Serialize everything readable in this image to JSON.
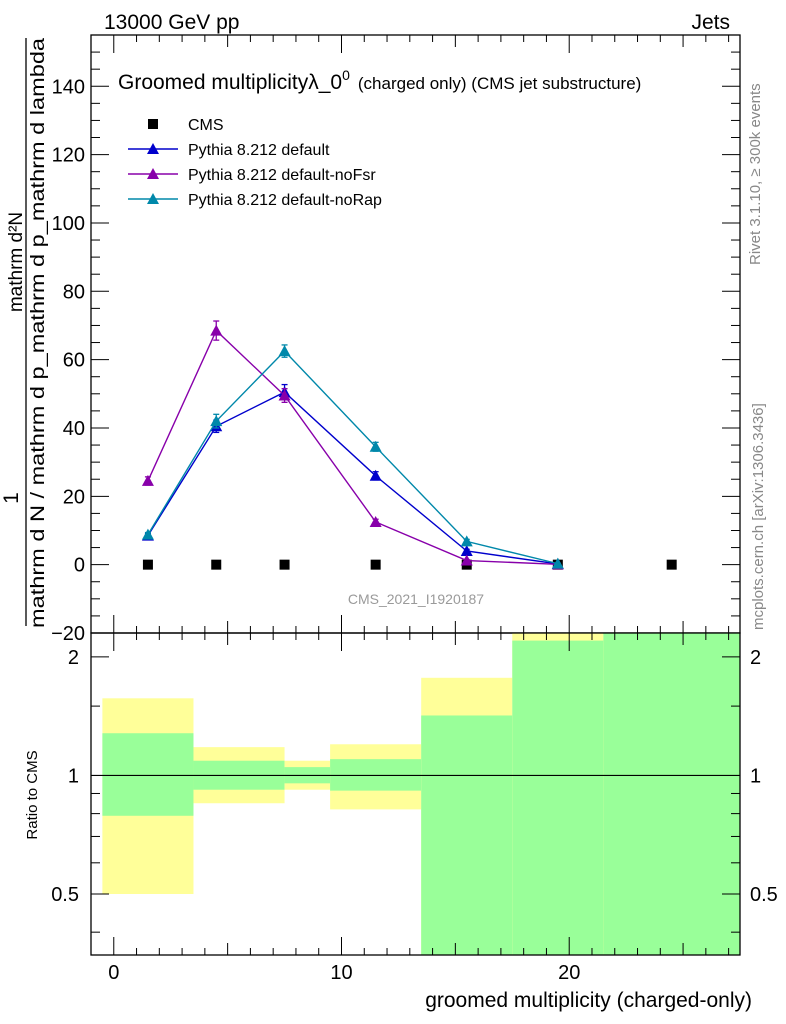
{
  "header": {
    "left": "13000 GeV pp",
    "right": "Jets"
  },
  "side": {
    "rivet": "Rivet 3.1.10, ≥ 300k events",
    "mcplots": "mcplots.cern.ch [arXiv:1306.3436]"
  },
  "chart_data": [
    {
      "type": "line",
      "title_main": "Groomed multiplicity",
      "title_lambda": "λ_0",
      "title_sup": "0",
      "title_suffix": "(charged only) (CMS jet substructure)",
      "watermark": "CMS_2021_I1920187",
      "ylabel_numer": "1",
      "ylabel_denom": "mathrm d N / mathrm d p_mathrm d p_mathrm d lambda",
      "ylabel_inner": "mathrm d²N",
      "ylim": [
        -20,
        155
      ],
      "xlim": [
        -1,
        27.5
      ],
      "y_ticks": [
        -20,
        0,
        20,
        40,
        60,
        80,
        100,
        120,
        140
      ],
      "y_tick_labels": [
        "−20",
        "0",
        "20",
        "40",
        "60",
        "80",
        "100",
        "120",
        "140"
      ],
      "legend_position": "top-left",
      "series": [
        {
          "name": "CMS",
          "color": "#000000",
          "marker": "square",
          "x": [
            1.5,
            4.5,
            7.5,
            11.5,
            15.5,
            19.5,
            24.5
          ],
          "values": [
            0,
            0,
            0,
            0,
            0,
            0,
            0
          ],
          "errors": [
            0,
            0,
            0,
            0,
            0,
            0,
            0
          ]
        },
        {
          "name": "Pythia 8.212 default",
          "color": "#0000cc",
          "marker": "triangle",
          "x": [
            1.5,
            4.5,
            7.5,
            11.5,
            15.5,
            19.5
          ],
          "values": [
            8.5,
            40.5,
            50.5,
            26,
            4,
            0.2
          ],
          "errors": [
            0.6,
            1.8,
            2.2,
            1.2,
            0.5,
            0.1
          ]
        },
        {
          "name": "Pythia 8.212 default-noFsr",
          "color": "#8800aa",
          "marker": "triangle",
          "x": [
            1.5,
            4.5,
            7.5,
            11.5,
            15.5,
            19.5
          ],
          "values": [
            24.5,
            68.5,
            49.5,
            12.5,
            1.2,
            0.1
          ],
          "errors": [
            1.2,
            2.8,
            2,
            0.8,
            0.3,
            0.1
          ]
        },
        {
          "name": "Pythia 8.212 default-noRap",
          "color": "#0088aa",
          "marker": "triangle",
          "x": [
            1.5,
            4.5,
            7.5,
            11.5,
            15.5,
            19.5
          ],
          "values": [
            8.8,
            42,
            62.5,
            34.5,
            6.8,
            0.3
          ],
          "errors": [
            0.6,
            2,
            1.8,
            1.3,
            0.6,
            0.1
          ]
        }
      ]
    },
    {
      "type": "area",
      "ylabel": "Ratio to CMS",
      "xlabel": "groomed multiplicity (charged-only)",
      "y_scale": "log",
      "ylim": [
        0.35,
        2.3
      ],
      "xlim": [
        -1,
        27.5
      ],
      "reference_line": 1,
      "y_ticks": [
        0.5,
        1,
        2
      ],
      "y_tick_labels": [
        "0.5",
        "1",
        "2"
      ],
      "x_ticks": [
        0,
        10,
        20
      ],
      "x_tick_labels": [
        "0",
        "10",
        "20"
      ],
      "bands": [
        {
          "x0": -0.5,
          "x1": 3.5,
          "green_low": 0.79,
          "green_high": 1.28,
          "yellow_low": 0.5,
          "yellow_high": 1.57
        },
        {
          "x0": 3.5,
          "x1": 7.5,
          "green_low": 0.92,
          "green_high": 1.09,
          "yellow_low": 0.85,
          "yellow_high": 1.18
        },
        {
          "x0": 7.5,
          "x1": 9.5,
          "green_low": 0.955,
          "green_high": 1.05,
          "yellow_low": 0.92,
          "yellow_high": 1.09
        },
        {
          "x0": 9.5,
          "x1": 13.5,
          "green_low": 0.915,
          "green_high": 1.1,
          "yellow_low": 0.82,
          "yellow_high": 1.2
        },
        {
          "x0": 13.5,
          "x1": 17.5,
          "green_low": 0.35,
          "green_high": 1.42,
          "yellow_low": 0.35,
          "yellow_high": 1.77
        },
        {
          "x0": 17.5,
          "x1": 21.5,
          "green_low": 0.35,
          "green_high": 2.2,
          "yellow_low": 0.35,
          "yellow_high": 2.3
        },
        {
          "x0": 21.5,
          "x1": 27.5,
          "green_low": 0.35,
          "green_high": 2.3,
          "yellow_low": 0.35,
          "yellow_high": 2.3
        }
      ]
    }
  ]
}
